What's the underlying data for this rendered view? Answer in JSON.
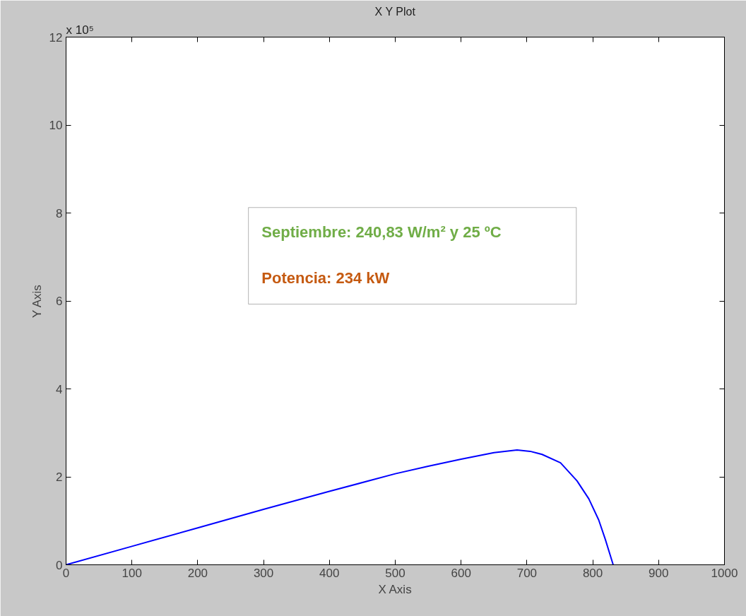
{
  "chart_data": {
    "type": "line",
    "title": "X Y Plot",
    "xlabel": "X Axis",
    "ylabel": "Y Axis",
    "x": [
      0,
      100,
      200,
      300,
      400,
      500,
      550,
      600,
      650,
      685,
      705,
      723,
      751,
      776,
      794,
      809,
      819,
      831
    ],
    "series": [
      {
        "color": "#0000ff",
        "values": [
          0,
          0.42,
          0.84,
          1.26,
          1.67,
          2.07,
          2.24,
          2.4,
          2.55,
          2.61,
          2.58,
          2.51,
          2.32,
          1.91,
          1.5,
          1.02,
          0.58,
          0
        ]
      }
    ],
    "xlim": [
      0,
      1000
    ],
    "xticks": [
      0,
      100,
      200,
      300,
      400,
      500,
      600,
      700,
      800,
      900,
      1000
    ],
    "ylim": [
      0,
      12
    ],
    "yticks": [
      0,
      2,
      4,
      6,
      8,
      10,
      12
    ],
    "grid": false,
    "marker": "none",
    "line_style": "solid",
    "annotations": [
      "x 10⁵",
      "Septiembre: 240,83 W/m² y 25 ºC",
      "Potencia: 234 kW"
    ]
  }
}
